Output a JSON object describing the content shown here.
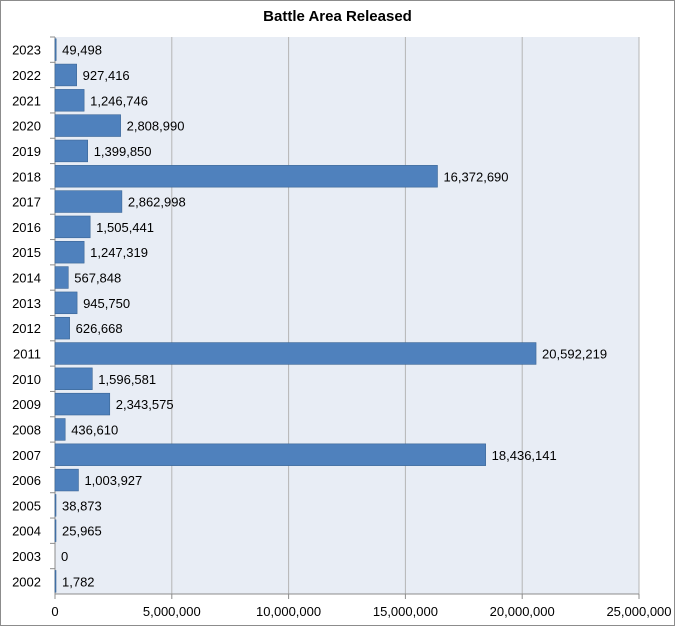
{
  "chart_data": {
    "type": "bar",
    "orientation": "horizontal",
    "title": "Battle Area Released",
    "xlabel": "",
    "ylabel": "",
    "categories": [
      "2002",
      "2003",
      "2004",
      "2005",
      "2006",
      "2007",
      "2008",
      "2009",
      "2010",
      "2011",
      "2012",
      "2013",
      "2014",
      "2015",
      "2016",
      "2017",
      "2018",
      "2019",
      "2020",
      "2021",
      "2022",
      "2023"
    ],
    "values": [
      1782,
      0,
      25965,
      38873,
      1003927,
      18436141,
      436610,
      2343575,
      1596581,
      20592219,
      626668,
      945750,
      567848,
      1247319,
      1505441,
      2862998,
      16372690,
      1399850,
      2808990,
      1246746,
      927416,
      49498
    ],
    "data_labels": [
      "1,782",
      "0",
      "25,965",
      "38,873",
      "1,003,927",
      "18,436,141",
      "436,610",
      "2,343,575",
      "1,596,581",
      "20,592,219",
      "626,668",
      "945,750",
      "567,848",
      "1,247,319",
      "1,505,441",
      "2,862,998",
      "16,372,690",
      "1,399,850",
      "2,808,990",
      "1,246,746",
      "927,416",
      "49,498"
    ],
    "xlim": [
      0,
      25000000
    ],
    "x_ticks": [
      0,
      5000000,
      10000000,
      15000000,
      20000000,
      25000000
    ],
    "x_tick_labels": [
      "0",
      "5,000,000",
      "10,000,000",
      "15,000,000",
      "20,000,000",
      "25,000,000"
    ],
    "grid": true,
    "legend": "none",
    "colors": {
      "bar": "#4f81bd",
      "bar_edge": "#3a6595",
      "plot_bg": "#e8edf5",
      "grid": "#b5b5b5",
      "axis": "#8c8c8c"
    }
  }
}
